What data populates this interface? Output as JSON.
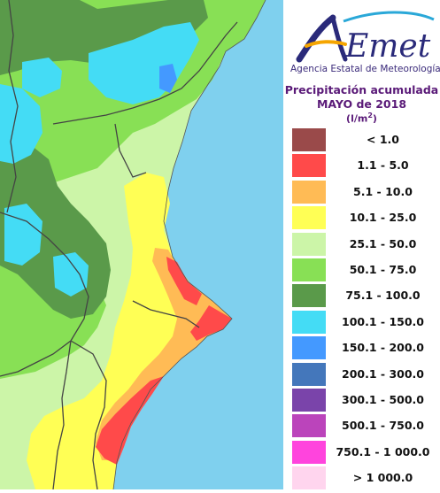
{
  "logo": {
    "brand": "AEmet",
    "agency": "Agencia Estatal de Meteorología"
  },
  "title": {
    "line1": "Precipitación acumulada",
    "line2": "MAYO de 2018",
    "unit_prefix": "(l/m",
    "unit_sup": "2",
    "unit_suffix": ")"
  },
  "legend": [
    {
      "label": "< 1.0",
      "color": "#9a4a4a"
    },
    {
      "label": "1.1 - 5.0",
      "color": "#ff4a4a"
    },
    {
      "label": "5.1 - 10.0",
      "color": "#ffbb55"
    },
    {
      "label": "10.1 - 25.0",
      "color": "#ffff55"
    },
    {
      "label": "25.1 - 50.0",
      "color": "#ccf5a8"
    },
    {
      "label": "50.1 - 75.0",
      "color": "#88e055"
    },
    {
      "label": "75.1 - 100.0",
      "color": "#5a9a4a"
    },
    {
      "label": "100.1 - 150.0",
      "color": "#44dcf5"
    },
    {
      "label": "150.1 - 200.0",
      "color": "#4499ff"
    },
    {
      "label": "200.1 - 300.0",
      "color": "#4477bb"
    },
    {
      "label": "300.1 - 500.0",
      "color": "#7a44aa"
    },
    {
      "label": "500.1 - 750.0",
      "color": "#bb44bb"
    },
    {
      "label": "750.1 - 1 000.0",
      "color": "#ff44dd"
    },
    {
      "label": "> 1 000.0",
      "color": "#ffd5ee"
    }
  ],
  "colors": {
    "sea": "#7fd0ee",
    "border": "#444444"
  }
}
